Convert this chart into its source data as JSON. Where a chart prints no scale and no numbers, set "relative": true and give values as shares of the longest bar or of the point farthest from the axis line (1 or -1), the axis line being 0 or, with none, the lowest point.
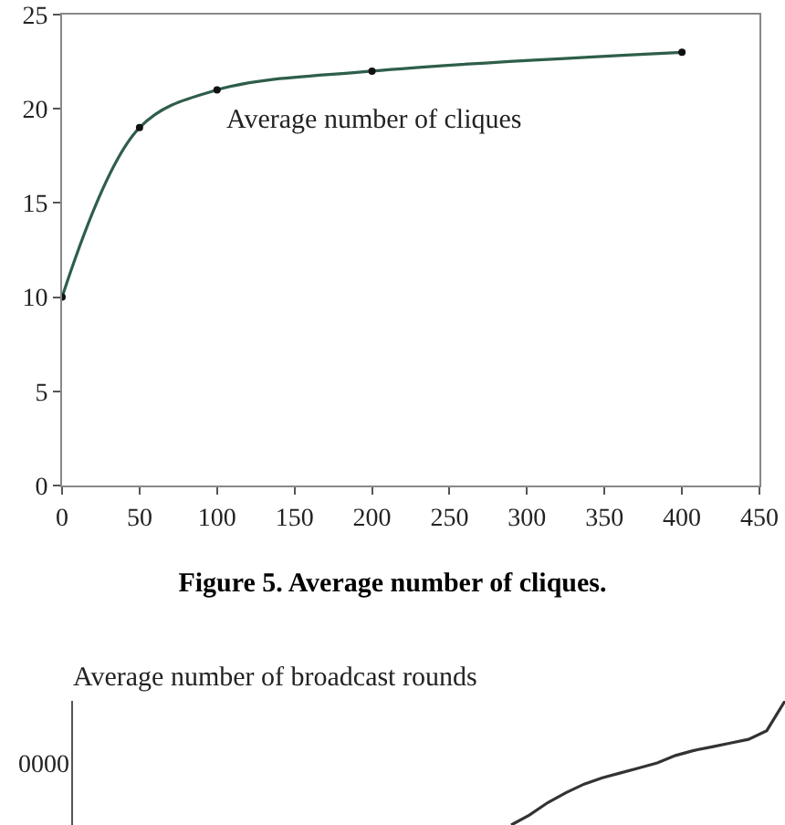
{
  "chart_data": [
    {
      "type": "line",
      "x": [
        0,
        50,
        100,
        200,
        400
      ],
      "series": [
        {
          "color": "#2e5e4a",
          "values": [
            10,
            19,
            21,
            22,
            23
          ]
        }
      ],
      "xlim": [
        0,
        450
      ],
      "xticks": [
        0,
        50,
        100,
        150,
        200,
        250,
        300,
        350,
        400,
        450
      ],
      "ylim": [
        0,
        25
      ],
      "yticks": [
        0,
        5,
        10,
        15,
        20,
        25
      ],
      "marker": "circle",
      "line_style": "solid",
      "annotations": [
        "Average number of cliques",
        "Figure 5. Average number of cliques."
      ]
    },
    {
      "type": "line",
      "title": "Average number of broadcast rounds",
      "relative": true,
      "categories": [
        null,
        null,
        null,
        null,
        null,
        null,
        null,
        null,
        null,
        null,
        null,
        null,
        null,
        null,
        null,
        null,
        null,
        null,
        null,
        null,
        null,
        null,
        null,
        null,
        null,
        null,
        null,
        null,
        null,
        null,
        null,
        null,
        null,
        null,
        null,
        null,
        null,
        null,
        null,
        null
      ],
      "series": [
        {
          "color": "#333333",
          "values": [
            null,
            null,
            null,
            null,
            null,
            null,
            null,
            null,
            null,
            null,
            null,
            null,
            null,
            null,
            null,
            null,
            null,
            null,
            null,
            null,
            null,
            null,
            null,
            null,
            0,
            0.08,
            0.18,
            0.26,
            0.33,
            0.38,
            0.42,
            0.46,
            0.5,
            0.56,
            0.6,
            0.63,
            0.66,
            0.69,
            0.76,
            1
          ]
        }
      ],
      "marker": "none",
      "line_style": "solid",
      "annotations": [
        "0000"
      ]
    }
  ]
}
